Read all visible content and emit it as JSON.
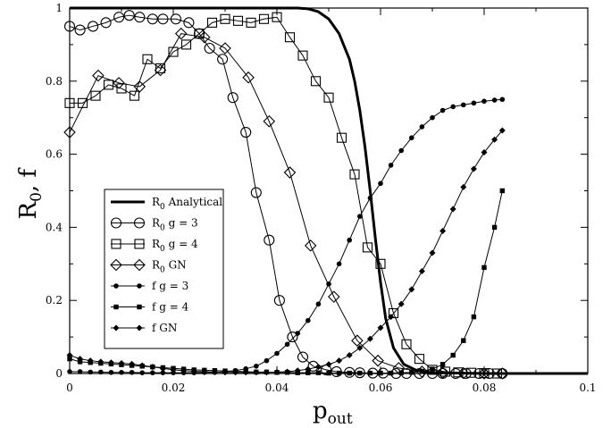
{
  "chart_data": {
    "type": "line",
    "xlabel": "p",
    "xlabel_sub": "out",
    "ylabel": "R",
    "ylabel_sub": "0",
    "ylabel_suffix": ", f",
    "xlim": [
      0,
      0.1
    ],
    "ylim": [
      0,
      1
    ],
    "xticks": [
      0,
      0.02,
      0.04,
      0.06,
      0.08,
      0.1
    ],
    "xtick_labels": [
      "0",
      "0.02",
      "0.04",
      "0.06",
      "0.08",
      "0.1"
    ],
    "yticks": [
      0,
      0.2,
      0.4,
      0.6,
      0.8,
      1
    ],
    "ytick_labels": [
      "0",
      "0.2",
      "0.4",
      "0.6",
      "0.8",
      "1"
    ],
    "grid": false,
    "legend_position": "left-middle",
    "series": [
      {
        "name": "R0 Analytical",
        "legend_main": "R",
        "legend_sub": "0",
        "legend_rest": " Analytical",
        "marker": "none",
        "line": "thick",
        "x": [
          0,
          0.02,
          0.04,
          0.044,
          0.046,
          0.048,
          0.05,
          0.052,
          0.054,
          0.055,
          0.056,
          0.057,
          0.058,
          0.059,
          0.06,
          0.061,
          0.0625,
          0.0645,
          0.067,
          0.07,
          0.08,
          0.1
        ],
        "y": [
          1,
          1,
          1,
          1,
          0.998,
          0.99,
          0.97,
          0.93,
          0.86,
          0.8,
          0.72,
          0.62,
          0.5,
          0.37,
          0.25,
          0.15,
          0.07,
          0.025,
          0.008,
          0.002,
          0,
          0
        ]
      },
      {
        "name": "R0 g = 3",
        "legend_main": "R",
        "legend_sub": "0",
        "legend_rest": "   g = 3",
        "marker": "circle",
        "line": "thin",
        "x": [
          0,
          0.002,
          0.0045,
          0.007,
          0.0095,
          0.0115,
          0.0135,
          0.016,
          0.018,
          0.0205,
          0.023,
          0.025,
          0.027,
          0.0295,
          0.0315,
          0.034,
          0.036,
          0.0385,
          0.0405,
          0.043,
          0.045,
          0.047,
          0.0495,
          0.0515,
          0.054,
          0.056,
          0.0585,
          0.0605,
          0.063,
          0.065,
          0.0675,
          0.07,
          0.072,
          0.0745,
          0.0765,
          0.079,
          0.081,
          0.0835
        ],
        "y": [
          0.95,
          0.94,
          0.95,
          0.96,
          0.975,
          0.98,
          0.975,
          0.97,
          0.97,
          0.97,
          0.96,
          0.93,
          0.89,
          0.86,
          0.755,
          0.66,
          0.495,
          0.365,
          0.2,
          0.1,
          0.045,
          0.02,
          0.01,
          0.005,
          0.003,
          0.002,
          0.001,
          0.001,
          0,
          0,
          0,
          0,
          0,
          0,
          0,
          0,
          0,
          0
        ]
      },
      {
        "name": "R0 g = 4",
        "legend_main": "R",
        "legend_sub": "0",
        "legend_rest": "   g = 4",
        "marker": "square",
        "line": "thin",
        "x": [
          0,
          0.0025,
          0.005,
          0.0075,
          0.01,
          0.0125,
          0.015,
          0.0175,
          0.02,
          0.0225,
          0.025,
          0.0275,
          0.03,
          0.0325,
          0.035,
          0.0375,
          0.04,
          0.0425,
          0.045,
          0.0475,
          0.05,
          0.0525,
          0.055,
          0.0575,
          0.06,
          0.0625,
          0.065,
          0.0675,
          0.07,
          0.0725,
          0.075,
          0.0775,
          0.08,
          0.0825
        ],
        "y": [
          0.74,
          0.74,
          0.76,
          0.79,
          0.78,
          0.76,
          0.86,
          0.835,
          0.88,
          0.9,
          0.93,
          0.96,
          0.97,
          0.965,
          0.96,
          0.97,
          0.975,
          0.92,
          0.87,
          0.8,
          0.755,
          0.645,
          0.545,
          0.345,
          0.3,
          0.165,
          0.08,
          0.04,
          0.01,
          0.005,
          0.003,
          0.002,
          0.001,
          0
        ]
      },
      {
        "name": "R0 GN",
        "legend_main": "R",
        "legend_sub": "0",
        "legend_rest": "   GN",
        "marker": "diamond",
        "line": "thin",
        "x": [
          0,
          0.0055,
          0.0095,
          0.0135,
          0.0175,
          0.0215,
          0.026,
          0.03,
          0.0345,
          0.0385,
          0.0425,
          0.0465,
          0.051,
          0.0555,
          0.0595,
          0.0635,
          0.068,
          0.072,
          0.076,
          0.08,
          0.0835
        ],
        "y": [
          0.66,
          0.815,
          0.795,
          0.785,
          0.83,
          0.93,
          0.92,
          0.89,
          0.81,
          0.69,
          0.55,
          0.35,
          0.21,
          0.09,
          0.035,
          0.015,
          0.005,
          0.002,
          0.001,
          0,
          0
        ]
      },
      {
        "name": "f g = 3",
        "legend_main": "f",
        "legend_sub": "",
        "legend_rest": "   g = 3",
        "marker": "dot",
        "line": "thin",
        "x": [
          0,
          0.002,
          0.004,
          0.006,
          0.008,
          0.01,
          0.012,
          0.014,
          0.016,
          0.018,
          0.02,
          0.022,
          0.024,
          0.026,
          0.028,
          0.03,
          0.032,
          0.034,
          0.036,
          0.038,
          0.04,
          0.042,
          0.044,
          0.046,
          0.048,
          0.05,
          0.052,
          0.054,
          0.056,
          0.058,
          0.06,
          0.062,
          0.064,
          0.066,
          0.068,
          0.07,
          0.072,
          0.074,
          0.076,
          0.078,
          0.08,
          0.082,
          0.0835
        ],
        "y": [
          0.005,
          0.005,
          0.004,
          0.004,
          0.003,
          0.003,
          0.003,
          0.002,
          0.002,
          0.002,
          0.002,
          0.002,
          0.002,
          0.003,
          0.003,
          0.005,
          0.008,
          0.013,
          0.02,
          0.035,
          0.055,
          0.08,
          0.11,
          0.145,
          0.19,
          0.245,
          0.3,
          0.365,
          0.43,
          0.48,
          0.52,
          0.57,
          0.61,
          0.645,
          0.675,
          0.7,
          0.72,
          0.73,
          0.735,
          0.74,
          0.745,
          0.748,
          0.75
        ]
      },
      {
        "name": "f g = 4",
        "legend_main": "f",
        "legend_sub": "",
        "legend_rest": "   g = 4",
        "marker": "smallsquare",
        "line": "thin",
        "x": [
          0,
          0.002,
          0.004,
          0.006,
          0.008,
          0.01,
          0.012,
          0.014,
          0.016,
          0.018,
          0.02,
          0.022,
          0.024,
          0.026,
          0.028,
          0.03,
          0.032,
          0.034,
          0.036,
          0.038,
          0.04,
          0.042,
          0.044,
          0.046,
          0.048,
          0.05,
          0.052,
          0.054,
          0.056,
          0.058,
          0.06,
          0.062,
          0.064,
          0.066,
          0.068,
          0.07,
          0.072,
          0.074,
          0.076,
          0.078,
          0.08,
          0.082,
          0.0835
        ],
        "y": [
          0.04,
          0.032,
          0.03,
          0.028,
          0.026,
          0.024,
          0.022,
          0.02,
          0.018,
          0.016,
          0.014,
          0.012,
          0.01,
          0.009,
          0.008,
          0.007,
          0.006,
          0.005,
          0.004,
          0.004,
          0.003,
          0.003,
          0.002,
          0.002,
          0.002,
          0.001,
          0.001,
          0.001,
          0.001,
          0.001,
          0.001,
          0.001,
          0.002,
          0.003,
          0.006,
          0.012,
          0.025,
          0.05,
          0.09,
          0.155,
          0.29,
          0.4,
          0.5
        ]
      },
      {
        "name": "f GN",
        "legend_main": "f",
        "legend_sub": "",
        "legend_rest": "   GN",
        "marker": "smalldiamond",
        "line": "thin",
        "x": [
          0,
          0.002,
          0.004,
          0.006,
          0.008,
          0.01,
          0.012,
          0.014,
          0.016,
          0.018,
          0.02,
          0.022,
          0.024,
          0.026,
          0.028,
          0.03,
          0.032,
          0.034,
          0.036,
          0.038,
          0.04,
          0.042,
          0.044,
          0.046,
          0.048,
          0.05,
          0.052,
          0.054,
          0.056,
          0.058,
          0.06,
          0.062,
          0.064,
          0.066,
          0.068,
          0.07,
          0.072,
          0.074,
          0.076,
          0.078,
          0.08,
          0.082,
          0.0835
        ],
        "y": [
          0.05,
          0.04,
          0.035,
          0.032,
          0.03,
          0.028,
          0.026,
          0.022,
          0.018,
          0.014,
          0.01,
          0.008,
          0.006,
          0.005,
          0.004,
          0.003,
          0.003,
          0.003,
          0.003,
          0.003,
          0.004,
          0.005,
          0.008,
          0.012,
          0.018,
          0.025,
          0.035,
          0.05,
          0.07,
          0.095,
          0.125,
          0.155,
          0.19,
          0.23,
          0.28,
          0.33,
          0.39,
          0.45,
          0.51,
          0.56,
          0.605,
          0.64,
          0.665
        ]
      }
    ]
  }
}
